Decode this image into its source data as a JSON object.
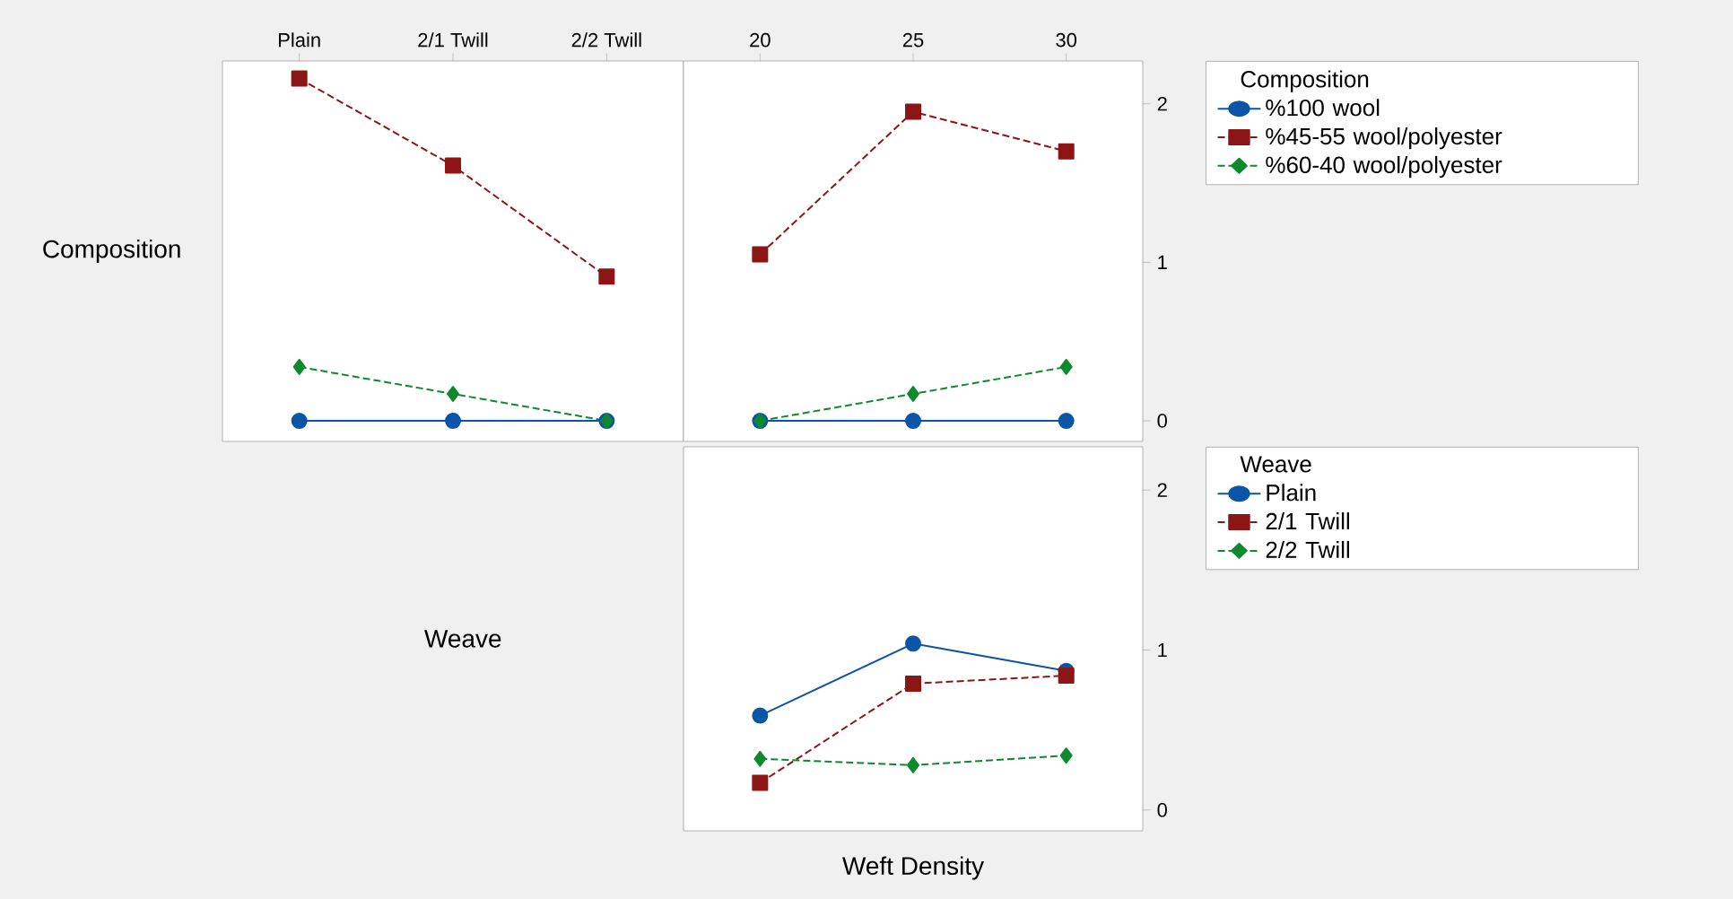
{
  "chart_data": [
    {
      "type": "line",
      "ylabel": "Composition",
      "categories": [
        "Plain",
        "2/1 Twill",
        "2/2 Twill"
      ],
      "ylim": [
        -0.13,
        2.27
      ],
      "tick_labels": "x",
      "series": [
        {
          "color": "#0b55a8",
          "marker": "circle",
          "line_style": "solid",
          "values": [
            0,
            0,
            0
          ]
        },
        {
          "color": "#8c1515",
          "marker": "square",
          "line_style": "dashed",
          "values": [
            2.16,
            1.61,
            0.91
          ]
        },
        {
          "color": "#0e8a2e",
          "marker": "diamond",
          "line_style": "dashed",
          "values": [
            0.34,
            0.17,
            0
          ]
        }
      ]
    },
    {
      "type": "line",
      "categories": [
        "20",
        "25",
        "30"
      ],
      "ylim": [
        -0.13,
        2.27
      ],
      "yticks": [
        0,
        1,
        2
      ],
      "legend": "right",
      "legend_title": "Composition",
      "series": [
        {
          "name": "%100 wool",
          "color": "#0b55a8",
          "marker": "circle",
          "line_style": "solid",
          "values": [
            0,
            0,
            0
          ]
        },
        {
          "name": "%45-55 wool/polyester",
          "color": "#8c1515",
          "marker": "square",
          "line_style": "dashed",
          "values": [
            1.05,
            1.95,
            1.7
          ]
        },
        {
          "name": "%60-40 wool/polyester",
          "color": "#0e8a2e",
          "marker": "diamond",
          "line_style": "dashed",
          "values": [
            0,
            0.17,
            0.34
          ]
        }
      ]
    },
    {
      "type": "line",
      "ylabel": "Weave",
      "xlabel": "Weft Density",
      "categories": [
        "20",
        "25",
        "30"
      ],
      "ylim": [
        -0.13,
        2.27
      ],
      "yticks": [
        0,
        1,
        2
      ],
      "tick_labels": "y",
      "legend": "right",
      "legend_title": "Weave",
      "series": [
        {
          "name": "Plain",
          "color": "#0b55a8",
          "marker": "circle",
          "line_style": "solid",
          "values": [
            0.59,
            1.04,
            0.87
          ]
        },
        {
          "name": "2/1 Twill",
          "color": "#8c1515",
          "marker": "square",
          "line_style": "dashed",
          "values": [
            0.17,
            0.79,
            0.84
          ]
        },
        {
          "name": "2/2 Twill",
          "color": "#0e8a2e",
          "marker": "diamond",
          "line_style": "dashed",
          "values": [
            0.32,
            0.28,
            0.34
          ]
        }
      ]
    }
  ]
}
